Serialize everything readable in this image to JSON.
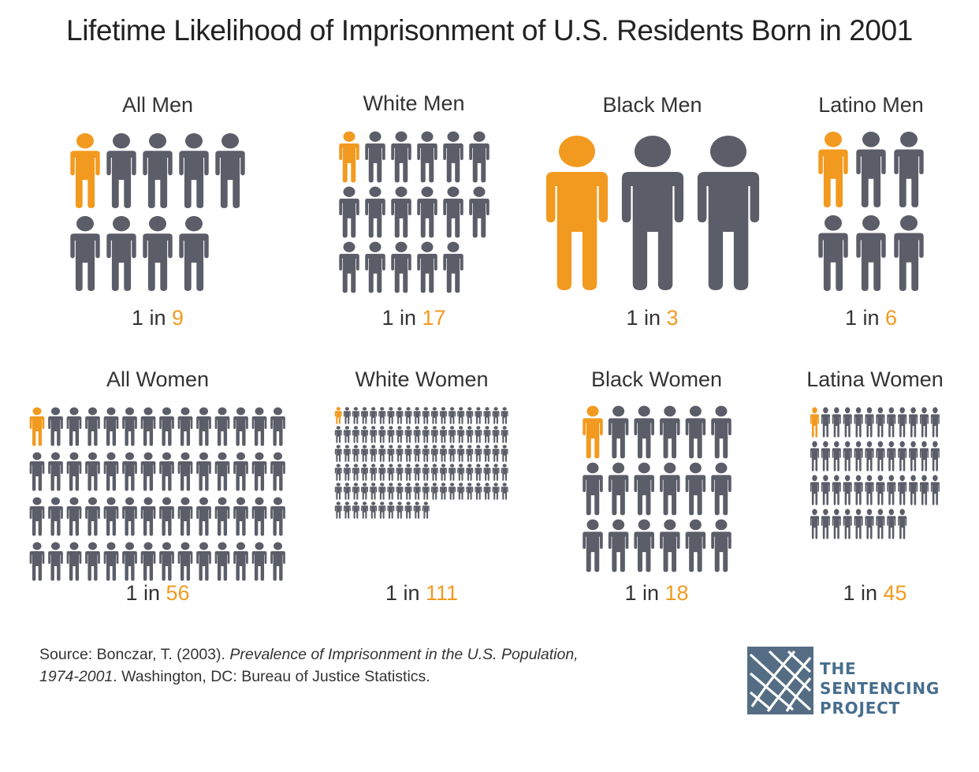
{
  "title": "Lifetime Likelihood of Imprisonment of U.S. Residents Born in 2001",
  "colors": {
    "highlight": "#f29a1f",
    "base": "#5b5d68",
    "logo_blue": "#466e8e"
  },
  "icon": "person-icon",
  "chart_data": {
    "type": "pictograph",
    "title": "Lifetime Likelihood of Imprisonment of U.S. Residents Born in 2001",
    "prefix": "1 in",
    "categories": [
      "All Men",
      "White Men",
      "Black Men",
      "Latino Men",
      "All Women",
      "White Women",
      "Black Women",
      "Latina Women"
    ],
    "values": [
      9,
      17,
      3,
      6,
      56,
      111,
      18,
      45
    ],
    "groups": [
      {
        "label": "All Men",
        "one_in": 9
      },
      {
        "label": "White Men",
        "one_in": 17
      },
      {
        "label": "Black Men",
        "one_in": 3
      },
      {
        "label": "Latino Men",
        "one_in": 6
      },
      {
        "label": "All Women",
        "one_in": 56
      },
      {
        "label": "White Women",
        "one_in": 111
      },
      {
        "label": "Black Women",
        "one_in": 18
      },
      {
        "label": "Latina Women",
        "one_in": 45
      }
    ]
  },
  "source": {
    "prefix": "Source: Bonczar, T. (2003). ",
    "title_line1": "Prevalence of Imprisonment in the U.S. Population,",
    "title_line2": "1974-2001",
    "suffix": ". Washington, DC: Bureau of Justice Statistics."
  },
  "logo": {
    "line1": "THE",
    "line2": "SENTENCING",
    "line3": "PROJECT"
  }
}
